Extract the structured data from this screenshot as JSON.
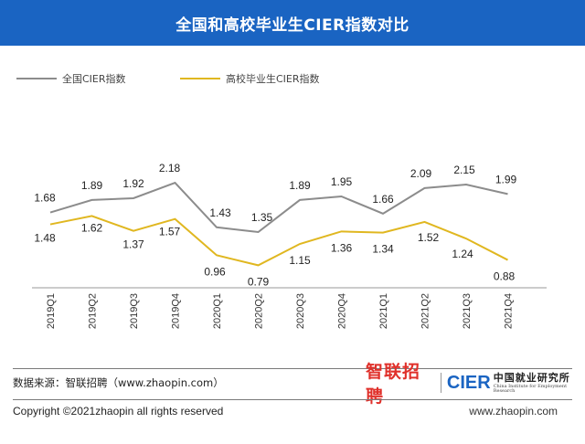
{
  "page": {
    "title": "全国和高校毕业生CIER指数对比",
    "source": "数据来源：智联招聘（www.zhaopin.com）",
    "brand_zh": "智联招聘",
    "brand_cier": "CIER",
    "brand_cier_zh": "中国就业研究所",
    "brand_cier_en": "China Institute for Employment Research",
    "copyright": "Copyright ©2021zhaopin all rights reserved",
    "site": "www.zhaopin.com"
  },
  "colors": {
    "title_bg": "#1a64c2",
    "national": "#8c8c8c",
    "graduate": "#e0b720"
  },
  "chart_data": {
    "type": "line",
    "title": "全国和高校毕业生CIER指数对比",
    "categories": [
      "2019Q1",
      "2019Q2",
      "2019Q3",
      "2019Q4",
      "2020Q1",
      "2020Q2",
      "2020Q3",
      "2020Q4",
      "2021Q1",
      "2021Q2",
      "2021Q3",
      "2021Q4"
    ],
    "series": [
      {
        "name": "全国CIER指数",
        "values": [
          1.68,
          1.89,
          1.92,
          2.18,
          1.43,
          1.35,
          1.89,
          1.95,
          1.66,
          2.09,
          2.15,
          1.99
        ]
      },
      {
        "name": "高校毕业生CIER指数",
        "values": [
          1.48,
          1.62,
          1.37,
          1.57,
          0.96,
          0.79,
          1.15,
          1.36,
          1.34,
          1.52,
          1.24,
          0.88
        ]
      }
    ],
    "xlabel": "",
    "ylabel": "",
    "legend": "top-left",
    "grid": false
  }
}
